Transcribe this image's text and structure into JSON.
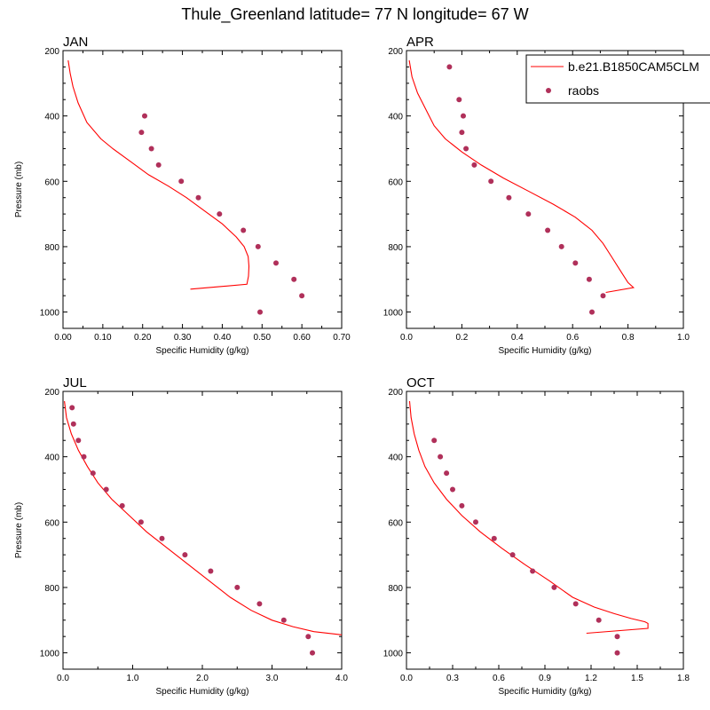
{
  "figure": {
    "title": "Thule_Greenland  latitude= 77 N longitude= 67 W",
    "colors": {
      "model": "#ff0000",
      "obs": "#b0305a",
      "axis": "#000000"
    }
  },
  "legend": {
    "model_label": "b.e21.B1850CAM5CLM",
    "obs_label": "raobs"
  },
  "chart_data": [
    {
      "type": "line",
      "title": "JAN",
      "xlabel": "Specific Humidity (g/kg)",
      "ylabel": "Pressure (mb)",
      "xlim": [
        0,
        0.7
      ],
      "ylim": [
        1050,
        200
      ],
      "xticks": [
        0,
        0.1,
        0.2,
        0.3,
        0.4,
        0.5,
        0.6,
        0.7
      ],
      "xtick_labels": [
        "0.00",
        "0.10",
        "0.20",
        "0.30",
        "0.40",
        "0.50",
        "0.60",
        "0.70"
      ],
      "yticks": [
        200,
        400,
        600,
        800,
        1000
      ],
      "ytick_labels": [
        "200",
        "400",
        "600",
        "800",
        "1000"
      ],
      "series": [
        {
          "name": "b.e21.B1850CAM5CLM",
          "kind": "line",
          "x": [
            0.013,
            0.018,
            0.025,
            0.038,
            0.06,
            0.095,
            0.125,
            0.17,
            0.215,
            0.265,
            0.31,
            0.355,
            0.4,
            0.435,
            0.455,
            0.465,
            0.467,
            0.466,
            0.462,
            0.32
          ],
          "y": [
            230,
            270,
            310,
            360,
            420,
            470,
            500,
            540,
            580,
            615,
            650,
            690,
            730,
            770,
            800,
            830,
            860,
            890,
            915,
            930
          ]
        },
        {
          "name": "raobs",
          "kind": "scatter",
          "x": [
            0.205,
            0.197,
            0.222,
            0.24,
            0.297,
            0.34,
            0.393,
            0.453,
            0.49,
            0.535,
            0.58,
            0.6,
            0.495
          ],
          "y": [
            400,
            450,
            500,
            550,
            600,
            650,
            700,
            750,
            800,
            850,
            900,
            950,
            1000
          ]
        }
      ]
    },
    {
      "type": "line",
      "title": "APR",
      "xlabel": "Specific Humidity (g/kg)",
      "ylabel": "",
      "xlim": [
        0,
        1.0
      ],
      "ylim": [
        1050,
        200
      ],
      "xticks": [
        0,
        0.2,
        0.4,
        0.6,
        0.8,
        1.0
      ],
      "xtick_labels": [
        "0.0",
        "0.2",
        "0.4",
        "0.6",
        "0.8",
        "1.0"
      ],
      "yticks": [
        200,
        400,
        600,
        800,
        1000
      ],
      "ytick_labels": [
        "200",
        "400",
        "600",
        "800",
        "1000"
      ],
      "series": [
        {
          "name": "b.e21.B1850CAM5CLM",
          "kind": "line",
          "x": [
            0.01,
            0.02,
            0.04,
            0.07,
            0.1,
            0.14,
            0.2,
            0.27,
            0.35,
            0.44,
            0.53,
            0.61,
            0.67,
            0.71,
            0.74,
            0.77,
            0.8,
            0.82,
            0.72
          ],
          "y": [
            230,
            280,
            330,
            380,
            430,
            470,
            510,
            550,
            590,
            630,
            670,
            710,
            750,
            790,
            830,
            870,
            910,
            925,
            940
          ]
        },
        {
          "name": "raobs",
          "kind": "scatter",
          "x": [
            0.155,
            0.19,
            0.205,
            0.2,
            0.215,
            0.245,
            0.305,
            0.37,
            0.44,
            0.51,
            0.56,
            0.61,
            0.66,
            0.71,
            0.67
          ],
          "y": [
            250,
            350,
            400,
            450,
            500,
            550,
            600,
            650,
            700,
            750,
            800,
            850,
            900,
            950,
            1000
          ]
        }
      ]
    },
    {
      "type": "line",
      "title": "JUL",
      "xlabel": "Specific Humidity (g/kg)",
      "ylabel": "Pressure (mb)",
      "xlim": [
        0,
        4.0
      ],
      "ylim": [
        1050,
        200
      ],
      "xticks": [
        0,
        1,
        2,
        3,
        4
      ],
      "xtick_labels": [
        "0.0",
        "1.0",
        "2.0",
        "3.0",
        "4.0"
      ],
      "yticks": [
        200,
        400,
        600,
        800,
        1000
      ],
      "ytick_labels": [
        "200",
        "400",
        "600",
        "800",
        "1000"
      ],
      "series": [
        {
          "name": "b.e21.B1850CAM5CLM",
          "kind": "line",
          "x": [
            0.02,
            0.05,
            0.12,
            0.22,
            0.35,
            0.5,
            0.7,
            0.95,
            1.2,
            1.5,
            1.8,
            2.1,
            2.4,
            2.7,
            3.0,
            3.3,
            3.6,
            4.0
          ],
          "y": [
            230,
            280,
            330,
            380,
            430,
            480,
            530,
            580,
            630,
            680,
            730,
            780,
            830,
            870,
            900,
            920,
            935,
            945
          ]
        },
        {
          "name": "raobs",
          "kind": "scatter",
          "x": [
            0.13,
            0.15,
            0.22,
            0.3,
            0.43,
            0.62,
            0.85,
            1.12,
            1.42,
            1.75,
            2.12,
            2.5,
            2.82,
            3.17,
            3.52,
            3.58
          ],
          "y": [
            250,
            300,
            350,
            400,
            450,
            500,
            550,
            600,
            650,
            700,
            750,
            800,
            850,
            900,
            950,
            1000
          ]
        }
      ]
    },
    {
      "type": "line",
      "title": "OCT",
      "xlabel": "Specific Humidity (g/kg)",
      "ylabel": "",
      "xlim": [
        0,
        1.8
      ],
      "ylim": [
        1050,
        200
      ],
      "xticks": [
        0,
        0.3,
        0.6,
        0.9,
        1.2,
        1.5,
        1.8
      ],
      "xtick_labels": [
        "0.0",
        "0.3",
        "0.6",
        "0.9",
        "1.2",
        "1.5",
        "1.8"
      ],
      "yticks": [
        200,
        400,
        600,
        800,
        1000
      ],
      "ytick_labels": [
        "200",
        "400",
        "600",
        "800",
        "1000"
      ],
      "series": [
        {
          "name": "b.e21.B1850CAM5CLM",
          "kind": "line",
          "x": [
            0.02,
            0.03,
            0.05,
            0.08,
            0.12,
            0.18,
            0.26,
            0.36,
            0.48,
            0.62,
            0.77,
            0.93,
            1.08,
            1.22,
            1.35,
            1.46,
            1.55,
            1.57,
            1.57,
            1.17
          ],
          "y": [
            230,
            280,
            330,
            380,
            430,
            480,
            530,
            580,
            630,
            680,
            730,
            780,
            830,
            860,
            880,
            895,
            905,
            910,
            925,
            940
          ]
        },
        {
          "name": "raobs",
          "kind": "scatter",
          "x": [
            0.18,
            0.22,
            0.26,
            0.3,
            0.36,
            0.45,
            0.57,
            0.69,
            0.82,
            0.96,
            1.1,
            1.25,
            1.37,
            1.37
          ],
          "y": [
            350,
            400,
            450,
            500,
            550,
            600,
            650,
            700,
            750,
            800,
            850,
            900,
            950,
            1000
          ]
        }
      ]
    }
  ]
}
